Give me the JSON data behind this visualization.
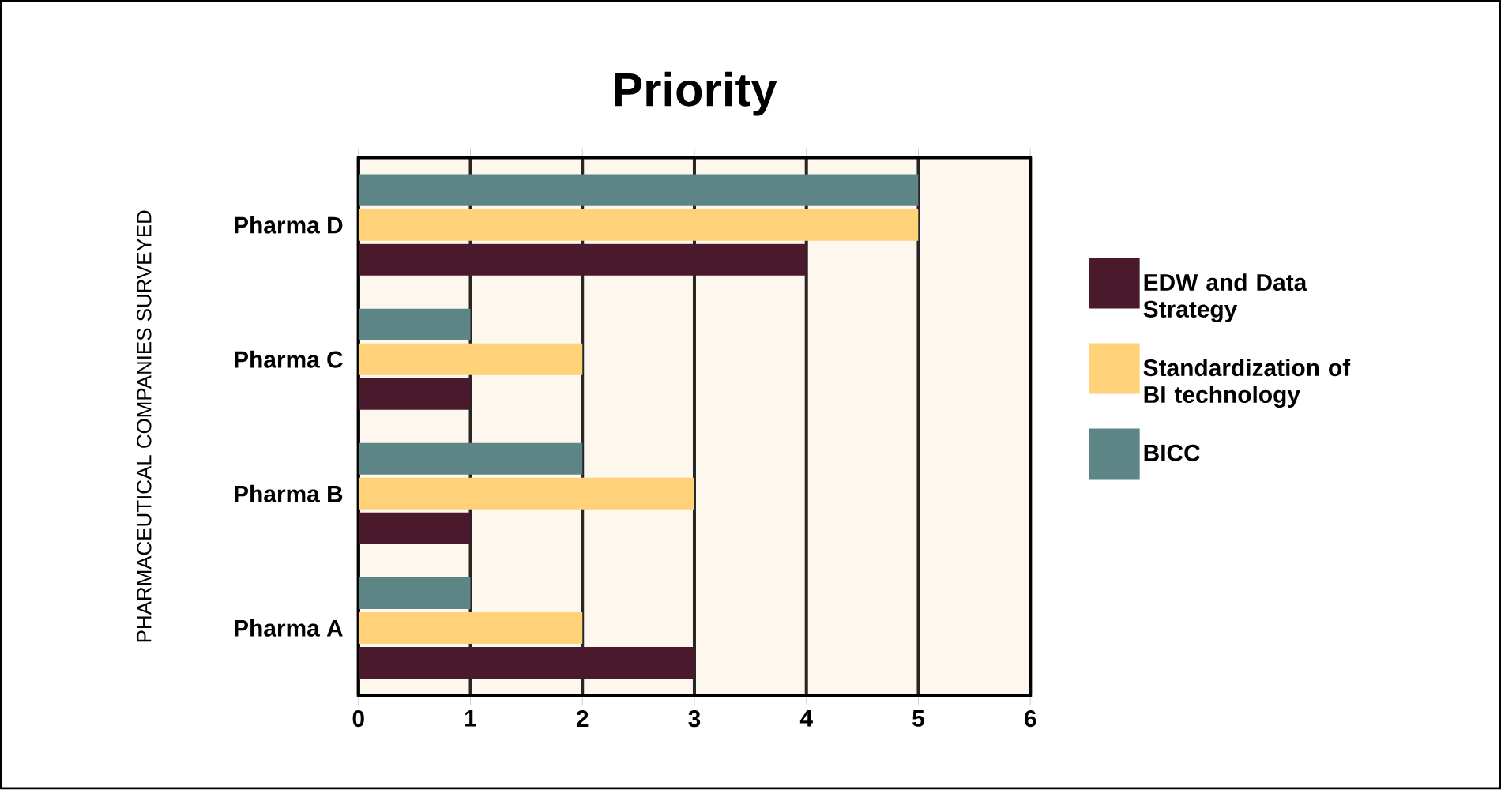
{
  "chart_data": {
    "type": "bar",
    "orientation": "horizontal",
    "title": "Priority",
    "ylabel": "PHARMACEUTICAL COMPANIES SURVEYED",
    "categories": [
      "Pharma D",
      "Pharma C",
      "Pharma B",
      "Pharma A"
    ],
    "series": [
      {
        "name": "EDW and Data Strategy",
        "color": "#4a1a2c",
        "values": [
          4,
          1,
          1,
          3
        ]
      },
      {
        "name": "Standardization of BI technology",
        "color": "#ffd27a",
        "values": [
          5,
          2,
          3,
          2
        ]
      },
      {
        "name": "BICC",
        "color": "#5e8585",
        "values": [
          5,
          1,
          2,
          1
        ]
      }
    ],
    "xlim": [
      0,
      6
    ],
    "xticks": [
      0,
      1,
      2,
      3,
      4,
      5,
      6
    ],
    "grid": "x",
    "legend": "right"
  }
}
